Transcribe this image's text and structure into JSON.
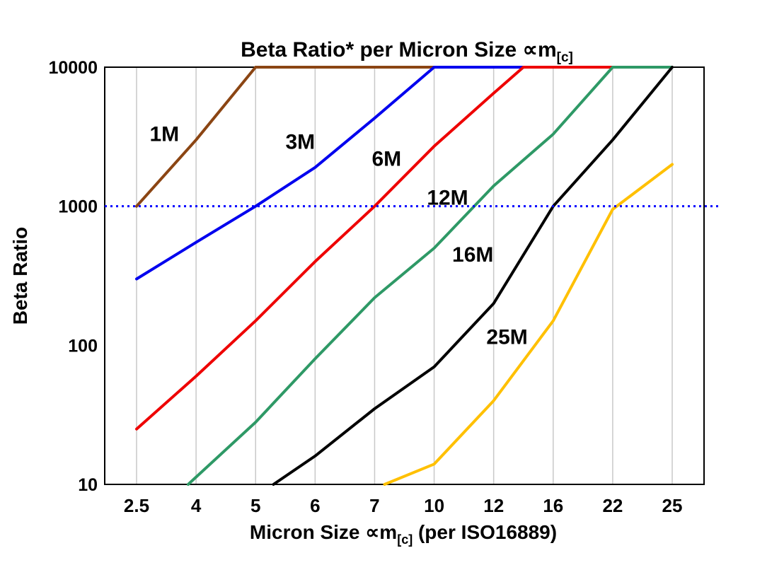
{
  "title": {
    "prefix": "Beta Ratio* per Micron Size ",
    "symbol": "∝m",
    "subscript": "[c]"
  },
  "y_axis": {
    "label": "Beta Ratio",
    "ticks": [
      "10",
      "100",
      "1000",
      "10000"
    ],
    "tick_values": [
      10,
      100,
      1000,
      10000
    ]
  },
  "x_axis": {
    "prefix": "Micron Size ",
    "symbol": "∝m",
    "subscript": "[c]",
    "suffix": " (per ISO16889)",
    "ticks": [
      "2.5",
      "4",
      "5",
      "6",
      "7",
      "10",
      "12",
      "16",
      "22",
      "25"
    ]
  },
  "chart_data": {
    "type": "line",
    "x_categories": [
      2.5,
      4,
      5,
      6,
      7,
      10,
      12,
      16,
      22,
      25
    ],
    "y_scale": "log",
    "ylim": [
      10,
      10000
    ],
    "grid": "vertical-only",
    "gridline_color": "#c9c9c9",
    "frame_color": "#000000",
    "reference_line": {
      "y": 1000,
      "style": "dotted",
      "color": "#0000ff"
    },
    "series": [
      {
        "name": "1M",
        "color": "#8B4513",
        "label_color": "#B5722D",
        "points": [
          [
            2.5,
            1000
          ],
          [
            4,
            3000
          ],
          [
            5,
            10000
          ],
          [
            10,
            10000
          ]
        ],
        "label_at": [
          3.2,
          3300
        ]
      },
      {
        "name": "3M",
        "color": "#0000EE",
        "label_color": "#0000EE",
        "points": [
          [
            2.5,
            300
          ],
          [
            4,
            550
          ],
          [
            5,
            1000
          ],
          [
            6,
            1900
          ],
          [
            7,
            4300
          ],
          [
            10,
            10000
          ],
          [
            14,
            10000
          ]
        ],
        "label_at": [
          5.75,
          2900
        ]
      },
      {
        "name": "6M",
        "color": "#EE0000",
        "label_color": "#EE0000",
        "points": [
          [
            2.5,
            25
          ],
          [
            4,
            60
          ],
          [
            5,
            150
          ],
          [
            6,
            400
          ],
          [
            7,
            1000
          ],
          [
            10,
            2700
          ],
          [
            12,
            6500
          ],
          [
            14,
            10000
          ],
          [
            22,
            10000
          ]
        ],
        "label_at": [
          7.6,
          2200
        ]
      },
      {
        "name": "12M",
        "color": "#2E9966",
        "label_color": "#00B050",
        "points": [
          [
            3.8,
            10
          ],
          [
            5,
            28
          ],
          [
            6,
            80
          ],
          [
            7,
            220
          ],
          [
            10,
            500
          ],
          [
            12,
            1400
          ],
          [
            16,
            3300
          ],
          [
            22,
            10000
          ],
          [
            25,
            10000
          ]
        ],
        "label_at": [
          10.45,
          1150
        ]
      },
      {
        "name": "16M",
        "color": "#000000",
        "label_color": "#000000",
        "points": [
          [
            5.3,
            10
          ],
          [
            6,
            16
          ],
          [
            7,
            35
          ],
          [
            10,
            70
          ],
          [
            12,
            200
          ],
          [
            16,
            1000
          ],
          [
            22,
            3000
          ],
          [
            25,
            10000
          ]
        ],
        "label_at": [
          11.3,
          450
        ]
      },
      {
        "name": "25M",
        "color": "#FFC000",
        "label_color": "#FFC000",
        "points": [
          [
            7.5,
            10
          ],
          [
            10,
            14
          ],
          [
            12,
            40
          ],
          [
            16,
            150
          ],
          [
            22,
            950
          ],
          [
            25,
            2000
          ]
        ],
        "label_at": [
          12.9,
          115
        ]
      }
    ]
  }
}
